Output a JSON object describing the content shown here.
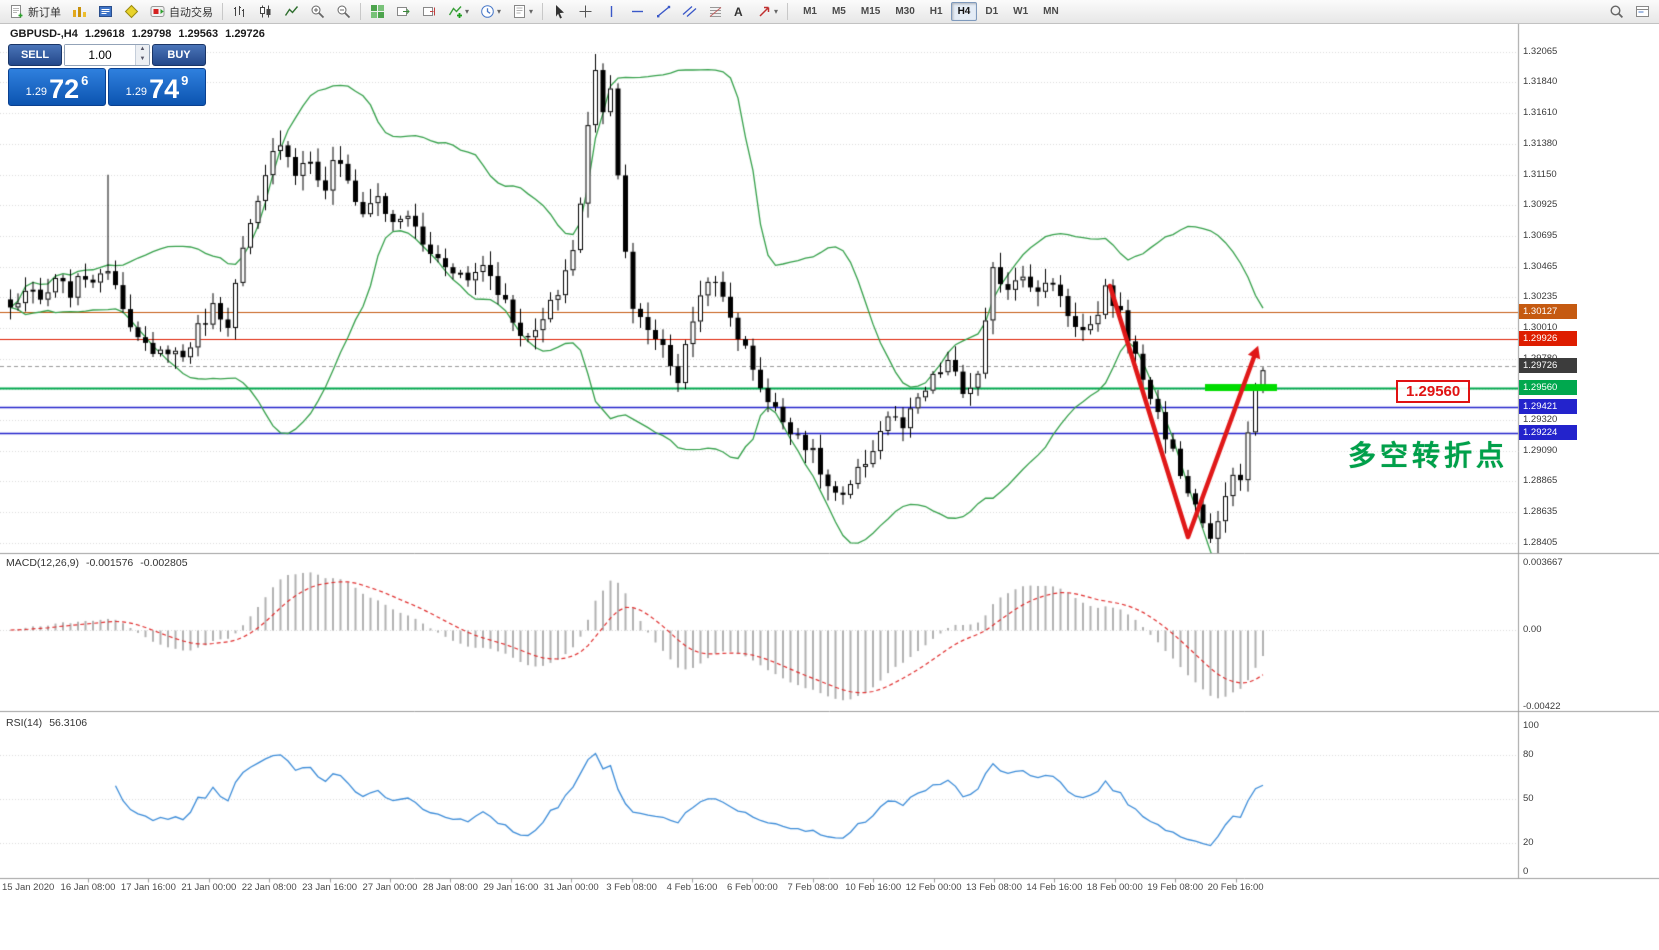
{
  "window": {
    "bg": "#FFFFFF",
    "accent_blue": "#1E66C8"
  },
  "toolbar": {
    "new_order_label": "新订单",
    "autotrading_label": "自动交易",
    "text_tool_glyph": "A",
    "caret_glyph": "▾",
    "timeframes": [
      "M1",
      "M5",
      "M15",
      "M30",
      "H1",
      "H4",
      "D1",
      "W1",
      "MN"
    ],
    "active_timeframe": "H4",
    "icons": [
      "new-order",
      "charts",
      "market-watch",
      "metaeditor",
      "autotrading",
      "bar-chart",
      "candlestick-chart",
      "line-chart",
      "zoom-in",
      "zoom-out",
      "tile-windows",
      "auto-scroll",
      "chart-shift",
      "indicators",
      "periods",
      "templates",
      "cursor",
      "crosshair",
      "vertical-line",
      "horizontal-line",
      "trendline",
      "equidistant-channel",
      "fibonacci",
      "text",
      "arrows",
      "search",
      "chart-properties"
    ]
  },
  "quote_bar": {
    "symbol": "GBPUSD-,H4",
    "open": "1.29618",
    "high": "1.29798",
    "low": "1.29563",
    "close": "1.29726"
  },
  "trade_panel": {
    "sell_label": "SELL",
    "buy_label": "BUY",
    "lot_value": "1.00",
    "spinner_up": "▲",
    "spinner_down": "▼",
    "sell_price_prefix": "1.29",
    "sell_price_big": "72",
    "sell_price_sup": "6",
    "buy_price_prefix": "1.29",
    "buy_price_big": "74",
    "buy_price_sup": "9"
  },
  "price_axis": {
    "ticks": [
      "1.32065",
      "1.31840",
      "1.31610",
      "1.31380",
      "1.31150",
      "1.30925",
      "1.30695",
      "1.30465",
      "1.30235",
      "1.30010",
      "1.29780",
      "1.29550",
      "1.29320",
      "1.29090",
      "1.28865",
      "1.28635",
      "1.28405"
    ],
    "markers": [
      {
        "text": "1.30127",
        "bg": "#C55A11"
      },
      {
        "text": "1.29926",
        "bg": "#DE1D00"
      },
      {
        "text": "1.29726",
        "bg": "#3C3C3C"
      },
      {
        "text": "1.29560",
        "bg": "#00A84E"
      },
      {
        "text": "1.29421",
        "bg": "#2323CC"
      },
      {
        "text": "1.29224",
        "bg": "#2323CC"
      }
    ]
  },
  "macd_panel": {
    "label": "MACD(12,26,9)",
    "value_main": "-0.001576",
    "value_signal": "-0.002805",
    "scale": [
      "0.003667",
      "0.00",
      "-0.00422"
    ]
  },
  "rsi_panel": {
    "label": "RSI(14)",
    "value": "56.3106",
    "scale": [
      "100",
      "80",
      "50",
      "20",
      "0"
    ],
    "levels": [
      80,
      50,
      20
    ]
  },
  "time_axis": [
    "15 Jan 2020",
    "16 Jan 08:00",
    "17 Jan 16:00",
    "21 Jan 00:00",
    "22 Jan 08:00",
    "23 Jan 16:00",
    "27 Jan 00:00",
    "28 Jan 08:00",
    "29 Jan 16:00",
    "31 Jan 00:00",
    "3 Feb 08:00",
    "4 Feb 16:00",
    "6 Feb 00:00",
    "7 Feb 08:00",
    "10 Feb 16:00",
    "12 Feb 00:00",
    "13 Feb 08:00",
    "14 Feb 16:00",
    "18 Feb 00:00",
    "19 Feb 08:00",
    "20 Feb 16:00"
  ],
  "annotations": {
    "level_label": "1.29560",
    "turning_label": "多空转折点"
  },
  "chart_data": {
    "type": "candlestick",
    "symbol": "GBPUSD",
    "timeframe": "H4",
    "bars": 168,
    "price_range": [
      1.28405,
      1.32065
    ],
    "current_price": 1.29726,
    "close_anchors": [
      [
        0,
        1.3015
      ],
      [
        2,
        1.3028
      ],
      [
        4,
        1.302
      ],
      [
        6,
        1.3034
      ],
      [
        8,
        1.3028
      ],
      [
        10,
        1.304
      ],
      [
        12,
        1.3036
      ],
      [
        13,
        1.3048
      ],
      [
        15,
        1.302
      ],
      [
        17,
        1.2992
      ],
      [
        19,
        1.2978
      ],
      [
        21,
        1.2986
      ],
      [
        23,
        1.2979
      ],
      [
        25,
        1.3
      ],
      [
        27,
        1.3016
      ],
      [
        29,
        1.3006
      ],
      [
        31,
        1.3058
      ],
      [
        33,
        1.3092
      ],
      [
        35,
        1.313
      ],
      [
        36,
        1.3142
      ],
      [
        38,
        1.3118
      ],
      [
        40,
        1.3126
      ],
      [
        42,
        1.31
      ],
      [
        43,
        1.3128
      ],
      [
        45,
        1.311
      ],
      [
        47,
        1.3086
      ],
      [
        49,
        1.31
      ],
      [
        51,
        1.3076
      ],
      [
        53,
        1.3086
      ],
      [
        55,
        1.3062
      ],
      [
        57,
        1.3052
      ],
      [
        59,
        1.3046
      ],
      [
        61,
        1.3036
      ],
      [
        63,
        1.305
      ],
      [
        65,
        1.303
      ],
      [
        67,
        1.3008
      ],
      [
        69,
        1.299
      ],
      [
        71,
        1.3006
      ],
      [
        73,
        1.3028
      ],
      [
        75,
        1.306
      ],
      [
        76,
        1.3092
      ],
      [
        77,
        1.315
      ],
      [
        78,
        1.3196
      ],
      [
        79,
        1.3165
      ],
      [
        80,
        1.3178
      ],
      [
        81,
        1.312
      ],
      [
        82,
        1.306
      ],
      [
        83,
        1.3012
      ],
      [
        85,
        1.3
      ],
      [
        87,
        1.2988
      ],
      [
        89,
        1.2962
      ],
      [
        91,
        1.3008
      ],
      [
        93,
        1.304
      ],
      [
        95,
        1.3022
      ],
      [
        97,
        1.2996
      ],
      [
        99,
        1.2972
      ],
      [
        101,
        1.2946
      ],
      [
        103,
        1.2932
      ],
      [
        105,
        1.2922
      ],
      [
        107,
        1.2906
      ],
      [
        109,
        1.2882
      ],
      [
        111,
        1.2872
      ],
      [
        113,
        1.2892
      ],
      [
        115,
        1.2912
      ],
      [
        117,
        1.2936
      ],
      [
        119,
        1.2926
      ],
      [
        121,
        1.2946
      ],
      [
        123,
        1.2962
      ],
      [
        125,
        1.2976
      ],
      [
        127,
        1.2952
      ],
      [
        129,
        1.2964
      ],
      [
        130,
        1.3002
      ],
      [
        131,
        1.3042
      ],
      [
        133,
        1.3032
      ],
      [
        135,
        1.3044
      ],
      [
        137,
        1.3026
      ],
      [
        139,
        1.3036
      ],
      [
        141,
        1.3012
      ],
      [
        143,
        1.2998
      ],
      [
        145,
        1.3006
      ],
      [
        146,
        1.3028
      ],
      [
        148,
        1.3012
      ],
      [
        150,
        1.2978
      ],
      [
        152,
        1.295
      ],
      [
        154,
        1.2922
      ],
      [
        156,
        1.2892
      ],
      [
        158,
        1.2868
      ],
      [
        160,
        1.2843
      ],
      [
        161,
        1.2852
      ],
      [
        162,
        1.2876
      ],
      [
        163,
        1.2886
      ],
      [
        164,
        1.2892
      ],
      [
        165,
        1.2922
      ],
      [
        166,
        1.2956
      ],
      [
        167,
        1.2973
      ]
    ],
    "wick_overrides": {
      "13": {
        "high": 1.3115
      },
      "36": {
        "high": 1.3148
      },
      "78": {
        "high": 1.3205
      },
      "160": {
        "low": 1.28405
      }
    },
    "overlays": [
      {
        "name": "Bollinger Bands",
        "period": 20,
        "deviation": 2,
        "color": "#35A04A"
      }
    ],
    "hlines": [
      {
        "price": 1.30127,
        "color": "#C55A11",
        "width": 1.2
      },
      {
        "price": 1.29926,
        "color": "#DE1D00",
        "width": 1.2
      },
      {
        "price": 1.2956,
        "color": "#00A84E",
        "width": 2
      },
      {
        "price": 1.29421,
        "color": "#2323CC",
        "width": 1.4
      },
      {
        "price": 1.29224,
        "color": "#2323CC",
        "width": 1.4
      }
    ],
    "colors": {
      "bull_body": "#FFFFFF",
      "bear_body": "#000000",
      "wick": "#000000",
      "grid": "#DADADA",
      "macd_histogram": "#B2B2B2",
      "macd_signal": "#E03030",
      "rsi_line": "#3C8CD8",
      "arrow": "#E01818",
      "highlight_bar": "#00DC00"
    }
  }
}
